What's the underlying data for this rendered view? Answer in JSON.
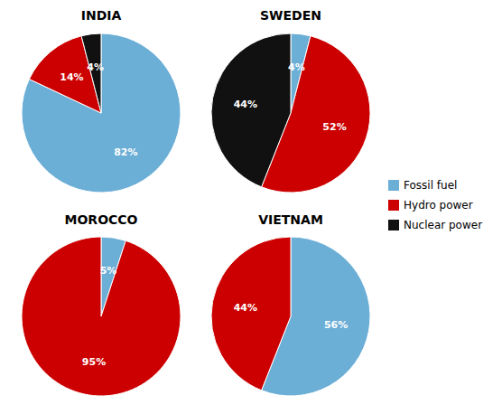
{
  "chart_data": [
    {
      "type": "pie",
      "title": "INDIA",
      "categories": [
        "Fossil fuel",
        "Hydro power",
        "Nuclear power"
      ],
      "values": [
        82,
        14,
        4
      ],
      "value_labels": [
        "82%",
        "14%",
        "4%"
      ],
      "colors": [
        "#6baed6",
        "#cc0000",
        "#111111"
      ],
      "data_labels": true,
      "legend": "right"
    },
    {
      "type": "pie",
      "title": "SWEDEN",
      "categories": [
        "Fossil fuel",
        "Hydro power",
        "Nuclear power"
      ],
      "values": [
        4,
        52,
        44
      ],
      "value_labels": [
        "4%",
        "52%",
        "44%"
      ],
      "colors": [
        "#6baed6",
        "#cc0000",
        "#111111"
      ],
      "data_labels": true
    },
    {
      "type": "pie",
      "title": "MOROCCO",
      "categories": [
        "Fossil fuel",
        "Hydro power"
      ],
      "values": [
        5,
        95
      ],
      "value_labels": [
        "5%",
        "95%"
      ],
      "colors": [
        "#6baed6",
        "#cc0000"
      ],
      "data_labels": true
    },
    {
      "type": "pie",
      "title": "VIETNAM",
      "categories": [
        "Fossil fuel",
        "Hydro power"
      ],
      "values": [
        56,
        44
      ],
      "value_labels": [
        "56%",
        "44%"
      ],
      "colors": [
        "#6baed6",
        "#cc0000"
      ],
      "data_labels": true
    }
  ]
}
